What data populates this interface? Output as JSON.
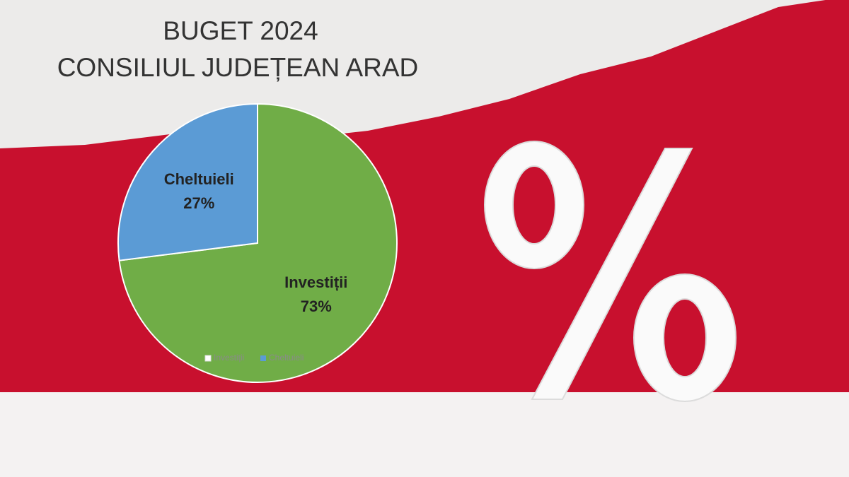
{
  "chart_data": {
    "type": "pie",
    "title": "BUGET 2024",
    "subtitle": "CONSILIUL JUDEȚEAN ARAD",
    "categories": [
      "Investiții",
      "Cheltuieli"
    ],
    "values": [
      73,
      27
    ],
    "value_labels": [
      "73%",
      "27%"
    ],
    "colors": [
      "#70ad47",
      "#5b9bd5"
    ],
    "legend": "bottom"
  }
}
